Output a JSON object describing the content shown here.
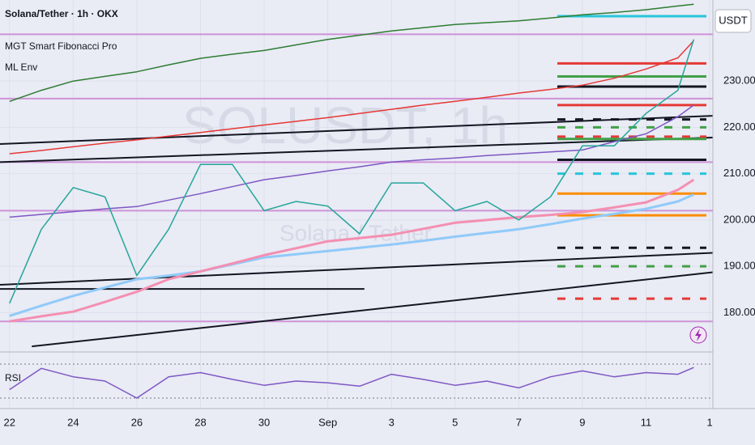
{
  "chart_data": [
    {
      "type": "line",
      "title": "Solana/Tether · 1h · OKX",
      "indicators": [
        "MGT Smart Fibonacci Pro",
        "ML Env"
      ],
      "currency": "USDT",
      "watermark": "SOLUSDT, 1h",
      "watermark_subtitle": "Solana / Tether",
      "grid": true,
      "x": [
        0,
        1,
        2,
        3,
        4,
        5,
        6,
        7,
        8,
        9,
        10,
        11,
        12,
        13,
        14,
        15,
        16,
        17,
        18,
        19,
        20,
        21,
        21.5
      ],
      "xlim": [
        -0.3,
        22.1
      ],
      "xticks": [
        {
          "value": 0,
          "label": "22"
        },
        {
          "value": 2,
          "label": "24"
        },
        {
          "value": 4,
          "label": "26"
        },
        {
          "value": 6,
          "label": "28"
        },
        {
          "value": 8,
          "label": "30"
        },
        {
          "value": 10,
          "label": "Sep"
        },
        {
          "value": 12,
          "label": "3"
        },
        {
          "value": 14,
          "label": "5"
        },
        {
          "value": 16,
          "label": "7"
        },
        {
          "value": 18,
          "label": "9"
        },
        {
          "value": 20,
          "label": "11"
        },
        {
          "value": 22,
          "label": "1"
        }
      ],
      "ylim": [
        171.5,
        247.5
      ],
      "yticks": [
        {
          "value": 180,
          "label": "180.00"
        },
        {
          "value": 190,
          "label": "190.00"
        },
        {
          "value": 200,
          "label": "200.00"
        },
        {
          "value": 210,
          "label": "210.00"
        },
        {
          "value": 220,
          "label": "220.00"
        },
        {
          "value": 230,
          "label": "230.00"
        }
      ],
      "series": [
        {
          "color": "#2e7d32",
          "width": 1.5,
          "values": [
            225.6,
            228,
            230,
            231,
            232,
            233.5,
            234.9,
            235.8,
            236.6,
            237.8,
            239,
            239.9,
            240.8,
            241.5,
            242.2,
            242.6,
            243,
            243.6,
            244.3,
            244.8,
            245.4,
            246.2,
            246.6
          ]
        },
        {
          "color": "#e53935",
          "width": 1.5,
          "values": [
            214.3,
            215,
            215.8,
            216.6,
            217.3,
            218.1,
            218.9,
            219.7,
            220.5,
            221.3,
            222.1,
            223,
            223.9,
            224.8,
            225.6,
            226.5,
            227.4,
            228.2,
            229.1,
            230.6,
            232.6,
            235,
            238.7
          ]
        },
        {
          "color": "#90caf9",
          "width": 3,
          "values": [
            179.3,
            181.5,
            183.6,
            185.4,
            187.2,
            188,
            188.9,
            190.4,
            191.9,
            192.6,
            193.3,
            194,
            194.7,
            195.5,
            196.4,
            197.2,
            198,
            199.1,
            200.3,
            201.3,
            202.4,
            204,
            205.5
          ]
        },
        {
          "color": "#f48fb1",
          "width": 3,
          "values": [
            178.1,
            179.2,
            180.2,
            182.3,
            184.5,
            187.2,
            188.9,
            190.6,
            192.4,
            193.9,
            195.4,
            196.1,
            196.8,
            198.1,
            199.4,
            200,
            200.6,
            201.1,
            201.7,
            202.7,
            203.8,
            206.5,
            208.7
          ]
        },
        {
          "color": "#7e57c2",
          "width": 1.5,
          "values": [
            200.6,
            201.2,
            201.8,
            202.4,
            202.9,
            204.3,
            205.7,
            207.2,
            208.7,
            209.6,
            210.6,
            211.5,
            212.5,
            213,
            213.4,
            213.9,
            214.3,
            214.7,
            215.1,
            216.9,
            218.6,
            222.3,
            224.8
          ]
        },
        {
          "color": "#26a69a",
          "width": 1.5,
          "values": [
            182,
            198,
            207,
            205,
            188,
            198,
            212,
            212,
            202,
            204,
            203,
            197,
            208,
            208,
            202,
            204,
            200,
            205,
            216,
            216,
            223,
            228,
            239
          ]
        }
      ],
      "hlines": [
        {
          "value": 240.1,
          "color": "#ce93d8"
        },
        {
          "value": 226.2,
          "color": "#ce93d8"
        },
        {
          "value": 212.5,
          "color": "#ce93d8"
        },
        {
          "value": 202,
          "color": "#ce93d8"
        },
        {
          "value": 178.1,
          "color": "#ce93d8"
        }
      ],
      "levels": [
        {
          "value": 244,
          "color": "#26c6da",
          "dashed": false
        },
        {
          "value": 233.8,
          "color": "#e53935",
          "dashed": false
        },
        {
          "value": 231,
          "color": "#43a047",
          "dashed": false
        },
        {
          "value": 228.8,
          "color": "#131722",
          "dashed": false
        },
        {
          "value": 224.8,
          "color": "#e53935",
          "dashed": false
        },
        {
          "value": 221.7,
          "color": "#131722",
          "dashed": true
        },
        {
          "value": 220,
          "color": "#43a047",
          "dashed": true
        },
        {
          "value": 218,
          "color": "#e53935",
          "dashed": true
        },
        {
          "value": 217.5,
          "color": "#43a047",
          "dashed": false
        },
        {
          "value": 213,
          "color": "#131722",
          "dashed": false
        },
        {
          "value": 210,
          "color": "#26c6da",
          "dashed": true
        },
        {
          "value": 205.7,
          "color": "#fb8c00",
          "dashed": false
        },
        {
          "value": 201,
          "color": "#fb8c00",
          "dashed": false
        },
        {
          "value": 194,
          "color": "#131722",
          "dashed": true
        },
        {
          "value": 190,
          "color": "#43a047",
          "dashed": true
        },
        {
          "value": 183,
          "color": "#e53935",
          "dashed": true
        }
      ],
      "trendlines": [
        {
          "x": [
            -0.3,
            22.1
          ],
          "y": [
            216.4,
            222.5
          ]
        },
        {
          "x": [
            -0.3,
            22.1
          ],
          "y": [
            212.5,
            217.8
          ]
        },
        {
          "x": [
            -0.3,
            22.1
          ],
          "y": [
            186,
            192.9
          ]
        },
        {
          "x": [
            0.7,
            22.1
          ],
          "y": [
            172.7,
            188.7
          ]
        },
        {
          "x": [
            -0.3,
            11.15
          ],
          "y": [
            185.1,
            185.1
          ]
        }
      ]
    },
    {
      "type": "line",
      "title": "RSI",
      "x": [
        0,
        1,
        2,
        3,
        4,
        5,
        6,
        7,
        8,
        9,
        10,
        11,
        12,
        13,
        14,
        15,
        16,
        17,
        18,
        19,
        20,
        21,
        21.5
      ],
      "xlim": [
        -0.3,
        22.1
      ],
      "ylim": [
        17.6,
        84.3
      ],
      "levels": [
        30,
        70
      ],
      "series": [
        {
          "color": "#7e57c2",
          "width": 1.5,
          "values": [
            40,
            65,
            55,
            50,
            30,
            55,
            60,
            52,
            45,
            50,
            48,
            44,
            58,
            52,
            45,
            50,
            42,
            55,
            62,
            55,
            60,
            58,
            66
          ]
        }
      ]
    }
  ]
}
